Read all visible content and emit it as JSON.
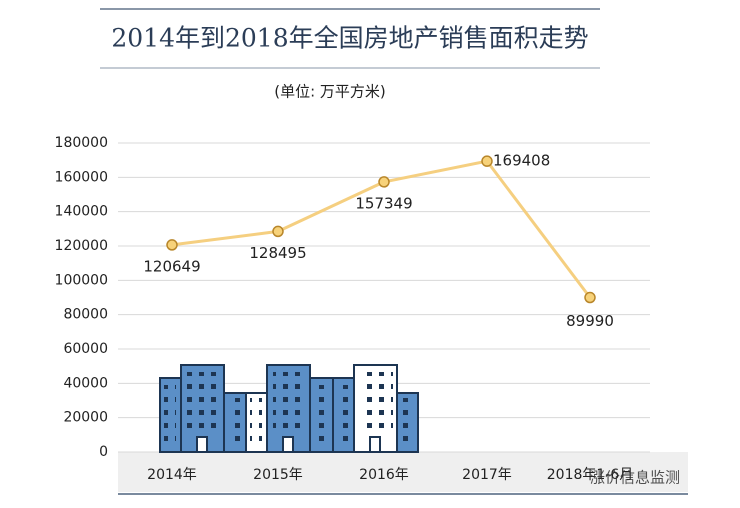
{
  "chart_data": {
    "type": "line",
    "title": "2014年到2018年全国房地产销售面积走势",
    "subtitle": "(单位: 万平方米)",
    "categories": [
      "2014年",
      "2015年",
      "2016年",
      "2017年",
      "2018年1-6月"
    ],
    "series": [
      {
        "name": "销售面积",
        "color": "#f5cf80",
        "values": [
          120649,
          128495,
          157349,
          169408,
          89990
        ]
      }
    ],
    "ylim": [
      0,
      180000
    ],
    "yticks": [
      0,
      20000,
      40000,
      60000,
      80000,
      100000,
      120000,
      140000,
      160000,
      180000
    ],
    "grid": true,
    "watermark": "涨价信息监测"
  }
}
